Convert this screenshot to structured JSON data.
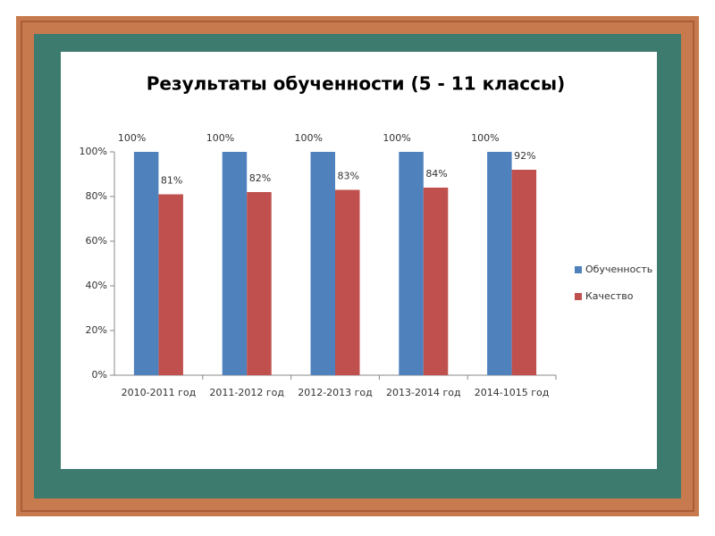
{
  "chart_data": {
    "type": "bar",
    "title": "Результаты обученности (5 - 11 классы)",
    "categories": [
      "2010-2011 год",
      "2011-2012 год",
      "2012-2013 год",
      "2013-2014 год",
      "2014-1015 год"
    ],
    "series": [
      {
        "name": "Обученность",
        "color": "#4f81bd",
        "values": [
          100,
          100,
          100,
          100,
          100
        ],
        "value_labels": [
          "100%",
          "100%",
          "100%",
          "100%",
          "100%"
        ]
      },
      {
        "name": "Качество",
        "color": "#c0504d",
        "values": [
          81,
          82,
          83,
          84,
          92
        ],
        "value_labels": [
          "81%",
          "82%",
          "83%",
          "84%",
          "92%"
        ]
      }
    ],
    "ylim": [
      0,
      100
    ],
    "yticks": [
      {
        "value": 0,
        "label": "0%"
      },
      {
        "value": 20,
        "label": "20%"
      },
      {
        "value": 40,
        "label": "40%"
      },
      {
        "value": 60,
        "label": "60%"
      },
      {
        "value": 80,
        "label": "80%"
      },
      {
        "value": 100,
        "label": "100%"
      }
    ],
    "grid": false,
    "legend": "right"
  }
}
